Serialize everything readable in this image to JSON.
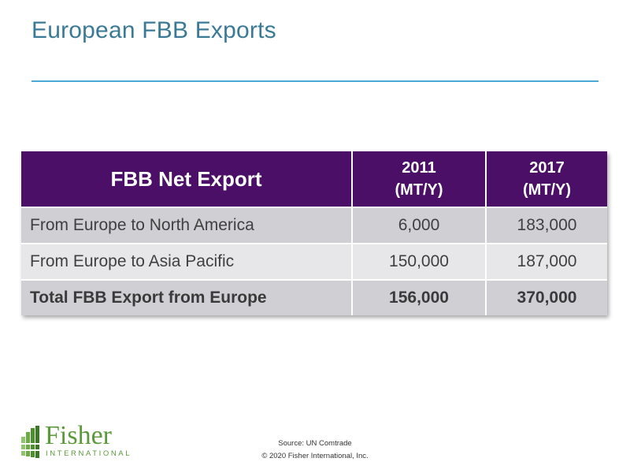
{
  "slide": {
    "title": "European FBB Exports"
  },
  "table": {
    "headers": {
      "label": "FBB Net Export",
      "col2_line1": "2011",
      "col2_line2": "(MT/Y)",
      "col3_line1": "2017",
      "col3_line2": "(MT/Y)"
    },
    "rows": [
      {
        "label": "From Europe to North America",
        "v2011": "6,000",
        "v2017": "183,000"
      },
      {
        "label": "From Europe to Asia Pacific",
        "v2011": "150,000",
        "v2017": "187,000"
      },
      {
        "label": "Total FBB Export from Europe",
        "v2011": "156,000",
        "v2017": "370,000"
      }
    ]
  },
  "logo": {
    "word": "Fisher",
    "sub": "INTERNATIONAL"
  },
  "footer": {
    "source": "Source: UN Comtrade",
    "copyright": "© 2020 Fisher International, Inc."
  },
  "colors": {
    "title": "#3a7a97",
    "rule": "#4aa8d6",
    "header_bg": "#4b0f68",
    "row_dark": "#cfcfd4",
    "row_light": "#e7e7ea",
    "logo_green": "#5a9a3a"
  }
}
